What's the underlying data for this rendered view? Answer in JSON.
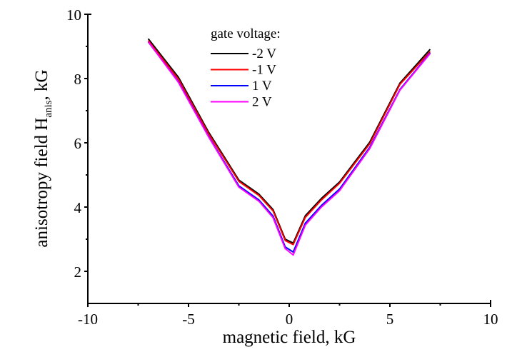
{
  "chart_data": {
    "type": "line",
    "title": "",
    "xlabel": "magnetic field, kG",
    "ylabel_main": "anisotropy field H",
    "ylabel_sub": "anis",
    "ylabel_suffix": ", kG",
    "xlim": [
      -10,
      10
    ],
    "ylim": [
      1,
      10
    ],
    "x_ticks": [
      -10,
      -5,
      0,
      5,
      10
    ],
    "x_tick_labels": [
      "-10",
      "-5",
      "0",
      "5",
      "10"
    ],
    "x_minor_ticks": [
      -7.5,
      -2.5,
      2.5,
      7.5
    ],
    "y_ticks": [
      2,
      4,
      6,
      8,
      10
    ],
    "y_tick_labels": [
      "2",
      "4",
      "6",
      "8",
      "10"
    ],
    "y_minor_ticks": [
      3,
      5,
      7,
      9
    ],
    "grid": false,
    "legend": {
      "title": "gate voltage:",
      "placement": "top-center"
    },
    "x": [
      -7.0,
      -5.5,
      -4.0,
      -2.5,
      -1.5,
      -0.8,
      -0.2,
      0.2,
      0.8,
      1.6,
      2.5,
      4.0,
      5.5,
      7.0
    ],
    "series": [
      {
        "name": "-2 V",
        "color": "#000000",
        "values": [
          9.24,
          8.04,
          6.33,
          4.84,
          4.4,
          3.92,
          3.0,
          2.88,
          3.73,
          4.27,
          4.78,
          6.02,
          7.86,
          8.91
        ]
      },
      {
        "name": "-1 V",
        "color": "#ff0000",
        "values": [
          9.18,
          7.98,
          6.28,
          4.8,
          4.36,
          3.88,
          2.96,
          2.83,
          3.68,
          4.22,
          4.74,
          5.97,
          7.82,
          8.84
        ]
      },
      {
        "name": "1 V",
        "color": "#0000ff",
        "values": [
          9.14,
          7.9,
          6.2,
          4.66,
          4.22,
          3.72,
          2.76,
          2.6,
          3.5,
          4.05,
          4.56,
          5.86,
          7.66,
          8.8
        ]
      },
      {
        "name": "2 V",
        "color": "#ff00ff",
        "values": [
          9.15,
          7.88,
          6.18,
          4.62,
          4.18,
          3.67,
          2.71,
          2.51,
          3.44,
          4.0,
          4.51,
          5.82,
          7.64,
          8.78
        ]
      }
    ]
  }
}
